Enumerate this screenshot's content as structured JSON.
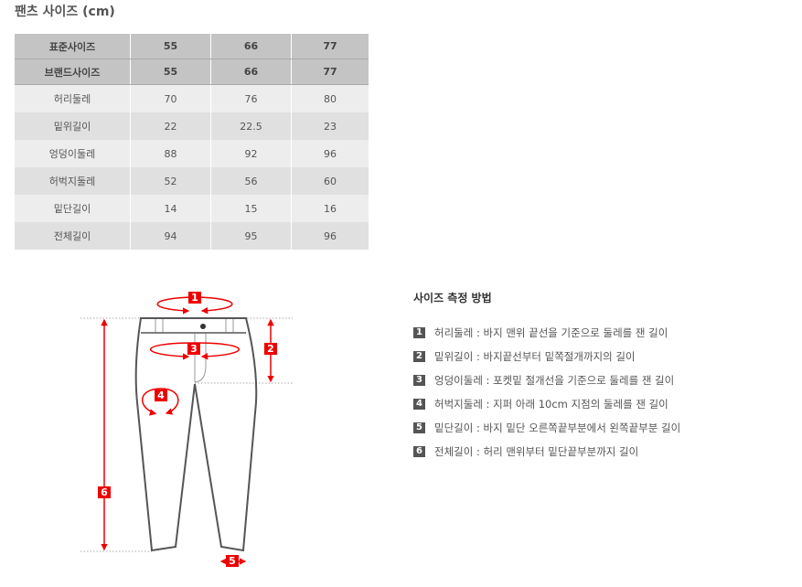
{
  "title": "팬츠 사이즈 (cm)",
  "table": {
    "header_rows": [
      [
        "표준사이즈",
        "55",
        "66",
        "77"
      ],
      [
        "브랜드사이즈",
        "55",
        "66",
        "77"
      ]
    ],
    "rows": [
      [
        "허리둘레",
        "70",
        "76",
        "80"
      ],
      [
        "밑위길이",
        "22",
        "22.5",
        "23"
      ],
      [
        "엉덩이둘레",
        "88",
        "92",
        "96"
      ],
      [
        "허벅지둘레",
        "52",
        "56",
        "60"
      ],
      [
        "밑단길이",
        "14",
        "15",
        "16"
      ],
      [
        "전체길이",
        "94",
        "95",
        "96"
      ]
    ]
  },
  "howto": {
    "title": "사이즈 측정 방법",
    "items": [
      {
        "num": "1",
        "text": "허리둘레 : 바지 맨위 끝선을 기준으로 둘레를 잰 길이"
      },
      {
        "num": "2",
        "text": "밑위길이 : 바지끝선부터 밑쪽절개까지의 길이"
      },
      {
        "num": "3",
        "text": "엉덩이둘레 : 포켓밑 절개선을 기준으로 둘레를 잰 길이"
      },
      {
        "num": "4",
        "text": "허벅지둘레 : 지퍼 아래 10cm 지점의 둘레를 잰 길이"
      },
      {
        "num": "5",
        "text": "밑단길이 : 바지 밑단 오른쪽끝부분에서 왼쪽끝부분 길이"
      },
      {
        "num": "6",
        "text": "전체길이 : 허리 맨위부터 밑단끝부분까지 길이"
      }
    ]
  },
  "diagram": {
    "labels": [
      "1",
      "2",
      "3",
      "4",
      "5",
      "6"
    ],
    "accent": "#e00000"
  }
}
